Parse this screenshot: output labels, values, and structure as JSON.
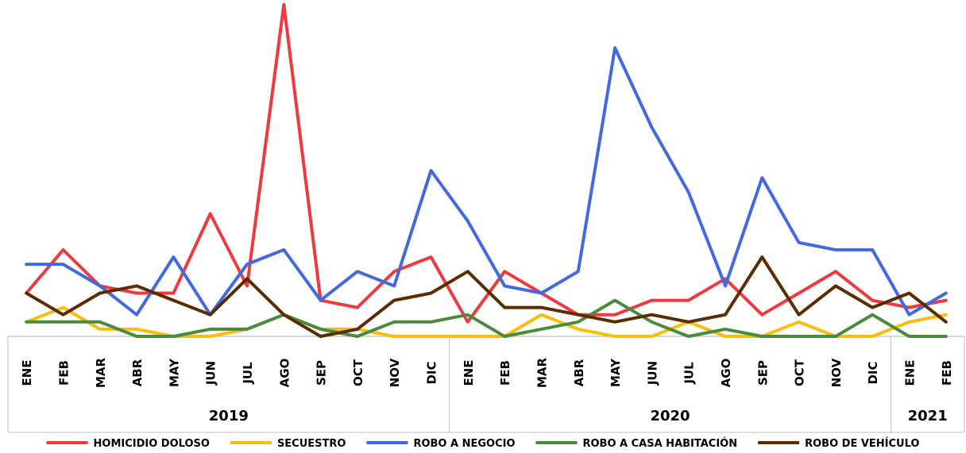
{
  "chart_data": {
    "type": "line",
    "categories": [
      "ENE",
      "FEB",
      "MAR",
      "ABR",
      "MAY",
      "JUN",
      "JUL",
      "AGO",
      "SEP",
      "OCT",
      "NOV",
      "DIC",
      "ENE",
      "FEB",
      "MAR",
      "ABR",
      "MAY",
      "JUN",
      "JUL",
      "AGO",
      "SEP",
      "OCT",
      "NOV",
      "DIC",
      "ENE",
      "FEB"
    ],
    "groups": [
      {
        "label": "2019",
        "start": 0,
        "count": 12
      },
      {
        "label": "2020",
        "start": 12,
        "count": 12
      },
      {
        "label": "2021",
        "start": 24,
        "count": 2
      }
    ],
    "ylim": [
      0,
      45
    ],
    "legend_position": "bottom",
    "grid": false,
    "series": [
      {
        "name": "HOMICIDIO DOLOSO",
        "color": "#F0393E",
        "values": [
          6,
          12,
          7,
          6,
          6,
          17,
          7,
          46,
          5,
          4,
          9,
          11,
          2,
          9,
          6,
          3,
          3,
          5,
          5,
          8,
          3,
          6,
          9,
          5,
          4,
          5
        ]
      },
      {
        "name": "SECUESTRO",
        "color": "#FCBC0A",
        "values": [
          2,
          4,
          1,
          1,
          0,
          0,
          1,
          3,
          1,
          1,
          0,
          0,
          0,
          0,
          3,
          1,
          0,
          0,
          2,
          0,
          0,
          2,
          0,
          0,
          2,
          3
        ]
      },
      {
        "name": "ROBO A NEGOCIO",
        "color": "#4169E1",
        "values": [
          10,
          10,
          7,
          3,
          11,
          3,
          10,
          12,
          5,
          9,
          7,
          23,
          16,
          7,
          6,
          9,
          40,
          29,
          20,
          7,
          22,
          13,
          12,
          12,
          3,
          6
        ]
      },
      {
        "name": "ROBO A CASA HABITACIÓN",
        "color": "#4A8A3C",
        "values": [
          2,
          2,
          2,
          0,
          0,
          1,
          1,
          3,
          1,
          0,
          2,
          2,
          3,
          0,
          1,
          2,
          5,
          2,
          0,
          1,
          0,
          0,
          0,
          3,
          0,
          0
        ]
      },
      {
        "name": "ROBO DE VEHÍCULO",
        "color": "#5B2C00",
        "values": [
          6,
          3,
          6,
          7,
          5,
          3,
          8,
          3,
          0,
          1,
          5,
          6,
          9,
          4,
          4,
          3,
          2,
          3,
          2,
          3,
          11,
          3,
          7,
          4,
          6,
          2
        ]
      }
    ]
  }
}
